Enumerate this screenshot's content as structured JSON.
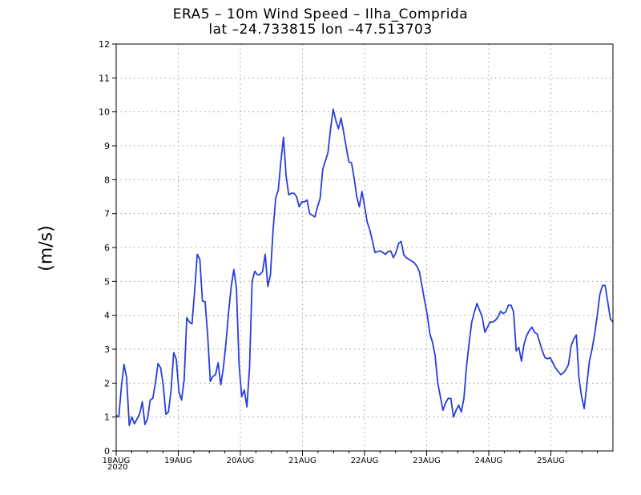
{
  "chart_data": {
    "type": "line",
    "title_line1": "ERA5 – 10m Wind Speed – Ilha_Comprida",
    "title_line2": "lat –24.733815 lon –47.513703",
    "ylabel": "(m/s)",
    "xlabel": "",
    "year_label": "2020",
    "ylim": [
      0,
      12
    ],
    "xlim_days": [
      0,
      8
    ],
    "y_ticks": [
      "0",
      "1",
      "2",
      "3",
      "4",
      "5",
      "6",
      "7",
      "8",
      "9",
      "10",
      "11",
      "12"
    ],
    "x_ticks": [
      "18AUG",
      "19AUG",
      "20AUG",
      "21AUG",
      "22AUG",
      "23AUG",
      "24AUG",
      "25AUG"
    ],
    "grid": true,
    "line_color": "#2a3ddc",
    "series": [
      {
        "values": [
          1.05,
          1.0,
          1.9,
          2.55,
          2.15,
          0.75,
          1.0,
          0.8,
          0.95,
          1.1,
          1.45,
          0.78,
          0.95,
          1.5,
          1.55,
          2.0,
          2.58,
          2.45,
          1.95,
          1.08,
          1.15,
          1.8,
          2.9,
          2.7,
          1.75,
          1.5,
          2.1,
          3.93,
          3.8,
          3.75,
          4.7,
          5.8,
          5.65,
          4.42,
          4.4,
          3.4,
          2.05,
          2.2,
          2.25,
          2.6,
          1.95,
          2.45,
          3.2,
          4.1,
          4.85,
          5.35,
          4.8,
          2.55,
          1.6,
          1.8,
          1.3,
          2.45,
          5.0,
          5.3,
          5.2,
          5.2,
          5.3,
          5.8,
          4.85,
          5.2,
          6.5,
          7.45,
          7.7,
          8.55,
          9.25,
          8.1,
          7.55,
          7.6,
          7.6,
          7.5,
          7.2,
          7.35,
          7.35,
          7.4,
          7.0,
          6.95,
          6.9,
          7.2,
          7.45,
          8.3,
          8.55,
          8.8,
          9.5,
          10.08,
          9.75,
          9.5,
          9.82,
          9.4,
          8.95,
          8.52,
          8.5,
          8.05,
          7.5,
          7.2,
          7.65,
          7.22,
          6.75,
          6.52,
          6.2,
          5.85,
          5.88,
          5.9,
          5.85,
          5.8,
          5.88,
          5.9,
          5.7,
          5.85,
          6.12,
          6.18,
          5.78,
          5.7,
          5.65,
          5.6,
          5.55,
          5.45,
          5.28,
          4.85,
          4.42,
          4.0,
          3.45,
          3.2,
          2.8,
          2.0,
          1.6,
          1.2,
          1.42,
          1.55,
          1.55,
          1.0,
          1.2,
          1.35,
          1.15,
          1.55,
          2.5,
          3.2,
          3.8,
          4.1,
          4.35,
          4.15,
          3.95,
          3.5,
          3.65,
          3.8,
          3.8,
          3.85,
          3.95,
          4.12,
          4.05,
          4.1,
          4.3,
          4.3,
          4.1,
          2.95,
          3.05,
          2.65,
          3.15,
          3.4,
          3.55,
          3.65,
          3.5,
          3.45,
          3.2,
          2.95,
          2.75,
          2.72,
          2.75,
          2.6,
          2.45,
          2.35,
          2.25,
          2.3,
          2.4,
          2.55,
          3.1,
          3.3,
          3.42,
          2.15,
          1.6,
          1.25,
          1.95,
          2.65,
          3.0,
          3.45,
          4.0,
          4.62,
          4.88,
          4.88,
          4.4,
          3.9,
          3.8
        ]
      }
    ]
  }
}
